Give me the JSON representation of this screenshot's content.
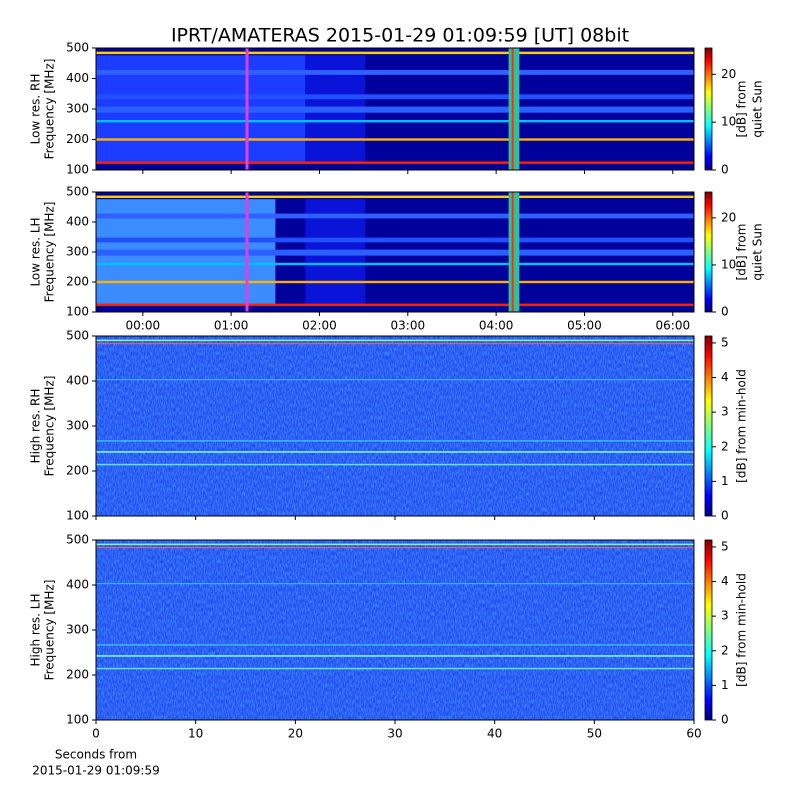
{
  "chart_data": [
    {
      "type": "heatmap",
      "title": "IPRT/AMATERAS 2015-01-29 01:09:59 [UT]   08bit",
      "ylabel": [
        "Low res. RH",
        "Frequency [MHz]"
      ],
      "ylim": [
        100,
        500
      ],
      "yticks": [
        100,
        200,
        300,
        400,
        500
      ],
      "xlim": [
        -0.53,
        6.24
      ],
      "xticks": [
        0,
        1,
        2,
        3,
        4,
        5,
        6
      ],
      "colorbar": {
        "label": [
          "[dB] from",
          "quiet Sun"
        ],
        "lim": [
          0,
          25.5
        ],
        "ticks": [
          0,
          10,
          20
        ]
      }
    },
    {
      "type": "heatmap",
      "ylabel": [
        "Low res. LH",
        "Frequency [MHz]"
      ],
      "ylim": [
        100,
        500
      ],
      "yticks": [
        100,
        200,
        300,
        400,
        500
      ],
      "xlim": [
        -0.53,
        6.24
      ],
      "xticks": [
        {
          "value": 0,
          "label": "00:00"
        },
        {
          "value": 1,
          "label": "01:00"
        },
        {
          "value": 2,
          "label": "02:00"
        },
        {
          "value": 3,
          "label": "03:00"
        },
        {
          "value": 4,
          "label": "04:00"
        },
        {
          "value": 5,
          "label": "05:00"
        },
        {
          "value": 6,
          "label": "06:00"
        }
      ],
      "colorbar": {
        "label": [
          "[dB] from",
          "quiet Sun"
        ],
        "lim": [
          0,
          25.5
        ],
        "ticks": [
          0,
          10,
          20
        ]
      }
    },
    {
      "type": "heatmap",
      "ylabel": [
        "High res. RH",
        "Frequency [MHz]"
      ],
      "ylim": [
        100,
        500
      ],
      "yticks": [
        100,
        200,
        300,
        400,
        500
      ],
      "xlim": [
        0,
        60
      ],
      "xticks": [
        0,
        10,
        20,
        30,
        40,
        50,
        60
      ],
      "colorbar": {
        "label": [
          "[dB] from min-hold"
        ],
        "lim": [
          0,
          5.2
        ],
        "ticks": [
          0,
          1,
          2,
          3,
          4,
          5
        ]
      }
    },
    {
      "type": "heatmap",
      "ylabel": [
        "High res. LH",
        "Frequency [MHz]"
      ],
      "xlabel": [
        "Seconds from",
        "2015-01-29 01:09:59"
      ],
      "ylim": [
        100,
        500
      ],
      "yticks": [
        100,
        200,
        300,
        400,
        500
      ],
      "xlim": [
        0,
        60
      ],
      "xticks": [
        0,
        10,
        20,
        30,
        40,
        50,
        60
      ],
      "colorbar": {
        "label": [
          "[dB] from min-hold"
        ],
        "lim": [
          0,
          5.2
        ],
        "ticks": [
          0,
          1,
          2,
          3,
          4,
          5
        ]
      }
    }
  ]
}
